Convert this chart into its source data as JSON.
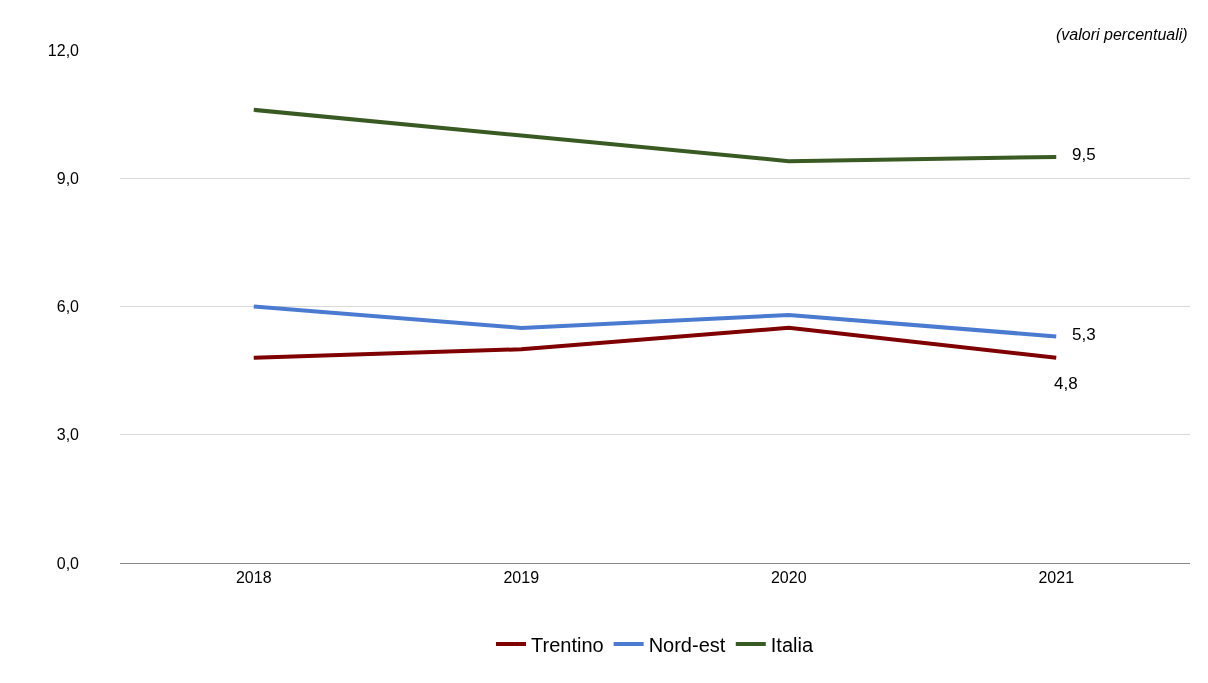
{
  "chart_data": {
    "type": "line",
    "annotations": [
      "(valori percentuali)"
    ],
    "categories": [
      "2018",
      "2019",
      "2020",
      "2021"
    ],
    "series": [
      {
        "name": "Trentino",
        "color": "#7f0000",
        "values": [
          4.8,
          5.0,
          5.5,
          4.8
        ],
        "value_labels": [
          null,
          null,
          null,
          "4,8"
        ]
      },
      {
        "name": "Nord-est",
        "color": "#4a7bd0",
        "values": [
          6.0,
          5.5,
          5.8,
          5.3
        ],
        "value_labels": [
          null,
          null,
          null,
          "5,3"
        ]
      },
      {
        "name": "Italia",
        "color": "#3a5a24",
        "values": [
          10.6,
          10.0,
          9.4,
          9.5
        ],
        "value_labels": [
          null,
          null,
          null,
          "9,5"
        ]
      }
    ],
    "ylim": [
      0,
      12
    ],
    "yticks": [
      {
        "value": 0,
        "label": "0,0"
      },
      {
        "value": 3,
        "label": "3,0"
      },
      {
        "value": 6,
        "label": "6,0"
      },
      {
        "value": 9,
        "label": "9,0"
      },
      {
        "value": 12,
        "label": "12,0"
      }
    ],
    "grid": "y",
    "legend": "bottom",
    "marker": "none",
    "line_style": "solid"
  }
}
